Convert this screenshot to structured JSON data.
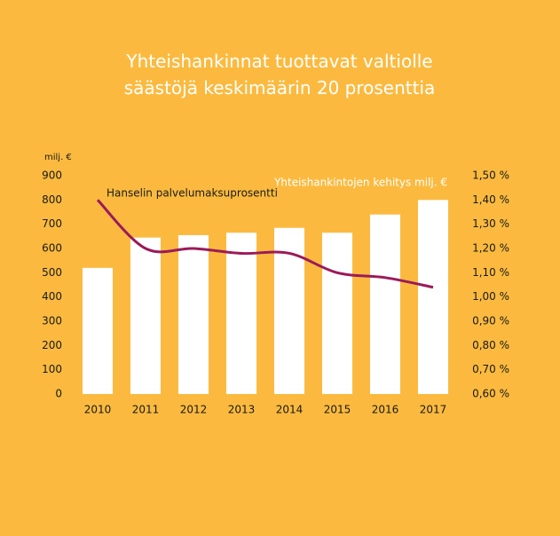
{
  "chart_data": {
    "type": "combo",
    "title": "Yhteishankinnat tuottavat valtiolle säästöjä keskimäärin 20 prosenttia",
    "y_label": "milj. €",
    "categories": [
      "2010",
      "2011",
      "2012",
      "2013",
      "2014",
      "2015",
      "2016",
      "2017"
    ],
    "series": [
      {
        "name": "Yhteishankintojen kehitys milj. €",
        "type": "bar",
        "color": "#ffffff",
        "values": [
          520,
          645,
          655,
          665,
          685,
          665,
          740,
          800
        ]
      },
      {
        "name": "Hanselin palvelumaksuprosentti",
        "type": "line",
        "axis": "y2",
        "color": "#9b1b59",
        "values": [
          1.4,
          1.2,
          1.2,
          1.18,
          1.18,
          1.1,
          1.08,
          1.04
        ]
      }
    ],
    "ylim": [
      0,
      900
    ],
    "yticks": [
      0,
      100,
      200,
      300,
      400,
      500,
      600,
      700,
      800,
      900
    ],
    "y2lim": [
      0.6,
      1.5
    ],
    "y2ticks": [
      {
        "value": 0.6,
        "label": "0,60 %"
      },
      {
        "value": 0.7,
        "label": "0,70 %"
      },
      {
        "value": 0.8,
        "label": "0,80 %"
      },
      {
        "value": 0.9,
        "label": "0,90 %"
      },
      {
        "value": 1.0,
        "label": "1,00 %"
      },
      {
        "value": 1.1,
        "label": "1,10 %"
      },
      {
        "value": 1.2,
        "label": "1,20 %"
      },
      {
        "value": 1.3,
        "label": "1,30 %"
      },
      {
        "value": 1.4,
        "label": "1,40 %"
      },
      {
        "value": 1.5,
        "label": "1,50 %"
      }
    ],
    "grid": false
  }
}
